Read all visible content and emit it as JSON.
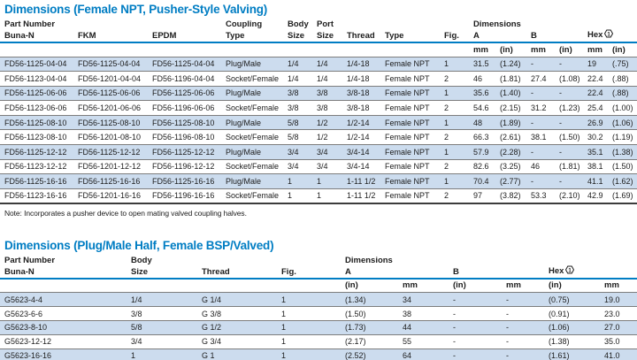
{
  "colors": {
    "accent": "#007dc3",
    "shade": "#ccdcee",
    "sep": "#7d7d7d",
    "tend": "#3c3c3c",
    "ink": "#1c1c1c"
  },
  "footnote": {
    "marker": "1"
  },
  "table1": {
    "title": "Dimensions (Female NPT, Pusher-Style Valving)",
    "header": {
      "part_number": "Part Number",
      "buna": "Buna-N",
      "fkm": "FKM",
      "epdm": "EPDM",
      "coupling_l1": "Coupling",
      "coupling_l2": "Type",
      "body_l1": "Body",
      "body_l2": "Size",
      "port_l1": "Port",
      "port_l2": "Size",
      "thread": "Thread",
      "type": "Type",
      "fig": "Fig.",
      "dimensions": "Dimensions",
      "a": "A",
      "b": "B",
      "hex": "Hex",
      "units": [
        "mm",
        "(in)",
        "mm",
        "(in)",
        "mm",
        "(in)"
      ]
    },
    "rows": [
      [
        "FD56-1125-04-04",
        "FD56-1125-04-04",
        "FD56-1125-04-04",
        "Plug/Male",
        "1/4",
        "1/4",
        "1/4-18",
        "Female NPT",
        "1",
        "31.5",
        "(1.24)",
        "-",
        "-",
        "19",
        "(.75)"
      ],
      [
        "FD56-1123-04-04",
        "FD56-1201-04-04",
        "FD56-1196-04-04",
        "Socket/Female",
        "1/4",
        "1/4",
        "1/4-18",
        "Female NPT",
        "2",
        "46",
        "(1.81)",
        "27.4",
        "(1.08)",
        "22.4",
        "(.88)"
      ],
      [
        "FD56-1125-06-06",
        "FD56-1125-06-06",
        "FD56-1125-06-06",
        "Plug/Male",
        "3/8",
        "3/8",
        "3/8-18",
        "Female NPT",
        "1",
        "35.6",
        "(1.40)",
        "-",
        "-",
        "22.4",
        "(.88)"
      ],
      [
        "FD56-1123-06-06",
        "FD56-1201-06-06",
        "FD56-1196-06-06",
        "Socket/Female",
        "3/8",
        "3/8",
        "3/8-18",
        "Female NPT",
        "2",
        "54.6",
        "(2.15)",
        "31.2",
        "(1.23)",
        "25.4",
        "(1.00)"
      ],
      [
        "FD56-1125-08-10",
        "FD56-1125-08-10",
        "FD56-1125-08-10",
        "Plug/Male",
        "5/8",
        "1/2",
        "1/2-14",
        "Female NPT",
        "1",
        "48",
        "(1.89)",
        "-",
        "-",
        "26.9",
        "(1.06)"
      ],
      [
        "FD56-1123-08-10",
        "FD56-1201-08-10",
        "FD56-1196-08-10",
        "Socket/Female",
        "5/8",
        "1/2",
        "1/2-14",
        "Female NPT",
        "2",
        "66.3",
        "(2.61)",
        "38.1",
        "(1.50)",
        "30.2",
        "(1.19)"
      ],
      [
        "FD56-1125-12-12",
        "FD56-1125-12-12",
        "FD56-1125-12-12",
        "Plug/Male",
        "3/4",
        "3/4",
        "3/4-14",
        "Female NPT",
        "1",
        "57.9",
        "(2.28)",
        "-",
        "-",
        "35.1",
        "(1.38)"
      ],
      [
        "FD56-1123-12-12",
        "FD56-1201-12-12",
        "FD56-1196-12-12",
        "Socket/Female",
        "3/4",
        "3/4",
        "3/4-14",
        "Female NPT",
        "2",
        "82.6",
        "(3.25)",
        "46",
        "(1.81)",
        "38.1",
        "(1.50)"
      ],
      [
        "FD56-1125-16-16",
        "FD56-1125-16-16",
        "FD56-1125-16-16",
        "Plug/Male",
        "1",
        "1",
        "1-11 1/2",
        "Female NPT",
        "1",
        "70.4",
        "(2.77)",
        "-",
        "-",
        "41.1",
        "(1.62)"
      ],
      [
        "FD56-1123-16-16",
        "FD56-1201-16-16",
        "FD56-1196-16-16",
        "Socket/Female",
        "1",
        "1",
        "1-11 1/2",
        "Female NPT",
        "2",
        "97",
        "(3.82)",
        "53.3",
        "(2.10)",
        "42.9",
        "(1.69)"
      ]
    ],
    "note": "Note: Incorporates a pusher device to open mating valved coupling halves."
  },
  "table2": {
    "title": "Dimensions (Plug/Male Half, Female BSP/Valved)",
    "header": {
      "part_number": "Part Number",
      "buna": "Buna-N",
      "body_l1": "Body",
      "body_l2": "Size",
      "thread": "Thread",
      "fig": "Fig.",
      "dimensions": "Dimensions",
      "a": "A",
      "b": "B",
      "hex": "Hex",
      "units": [
        "(in)",
        "mm",
        "(in)",
        "mm",
        "(in)",
        "mm"
      ]
    },
    "rows": [
      [
        "G5623-4-4",
        "1/4",
        "G 1/4",
        "1",
        "(1.34)",
        "34",
        "-",
        "-",
        "(0.75)",
        "19.0"
      ],
      [
        "G5623-6-6",
        "3/8",
        "G 3/8",
        "1",
        "(1.50)",
        "38",
        "-",
        "-",
        "(0.91)",
        "23.0"
      ],
      [
        "G5623-8-10",
        "5/8",
        "G 1/2",
        "1",
        "(1.73)",
        "44",
        "-",
        "-",
        "(1.06)",
        "27.0"
      ],
      [
        "G5623-12-12",
        "3/4",
        "G 3/4",
        "1",
        "(2.17)",
        "55",
        "-",
        "-",
        "(1.38)",
        "35.0"
      ],
      [
        "G5623-16-16",
        "1",
        "G 1",
        "1",
        "(2.52)",
        "64",
        "-",
        "-",
        "(1.61)",
        "41.0"
      ]
    ]
  }
}
